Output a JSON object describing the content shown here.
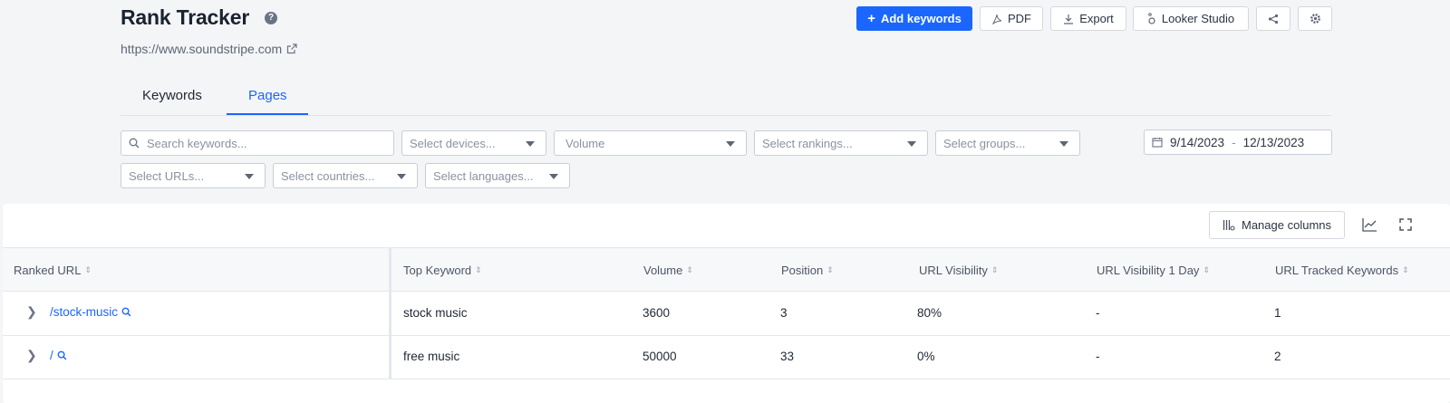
{
  "header": {
    "title": "Rank Tracker",
    "help": "?",
    "site_url": "https://www.soundstripe.com"
  },
  "toolbar": {
    "add_keywords": "Add keywords",
    "pdf": "PDF",
    "export": "Export",
    "looker": "Looker Studio"
  },
  "tabs": [
    {
      "label": "Keywords",
      "active": false
    },
    {
      "label": "Pages",
      "active": true
    }
  ],
  "filters": {
    "search_placeholder": "Search keywords...",
    "devices": "Select devices...",
    "volume": "Volume",
    "rankings": "Select rankings...",
    "groups": "Select groups...",
    "urls": "Select URLs...",
    "countries": "Select countries...",
    "languages": "Select languages...",
    "date_from": "9/14/2023",
    "date_sep": "-",
    "date_to": "12/13/2023"
  },
  "table": {
    "manage_columns": "Manage columns",
    "headers": [
      "Ranked URL",
      "Top Keyword",
      "Volume",
      "Position",
      "URL Visibility",
      "URL Visibility 1 Day",
      "URL Tracked Keywords"
    ],
    "rows": [
      {
        "url": "/stock-music",
        "keyword": "stock music",
        "volume": "3600",
        "position": "3",
        "visibility": "80%",
        "visibility_1d": "-",
        "tracked": "1"
      },
      {
        "url": "/",
        "keyword": "free music",
        "volume": "50000",
        "position": "33",
        "visibility": "0%",
        "visibility_1d": "-",
        "tracked": "2"
      }
    ]
  },
  "colors": {
    "accent": "#1a66ff",
    "text": "#1f2733",
    "muted": "#8a92a0"
  }
}
